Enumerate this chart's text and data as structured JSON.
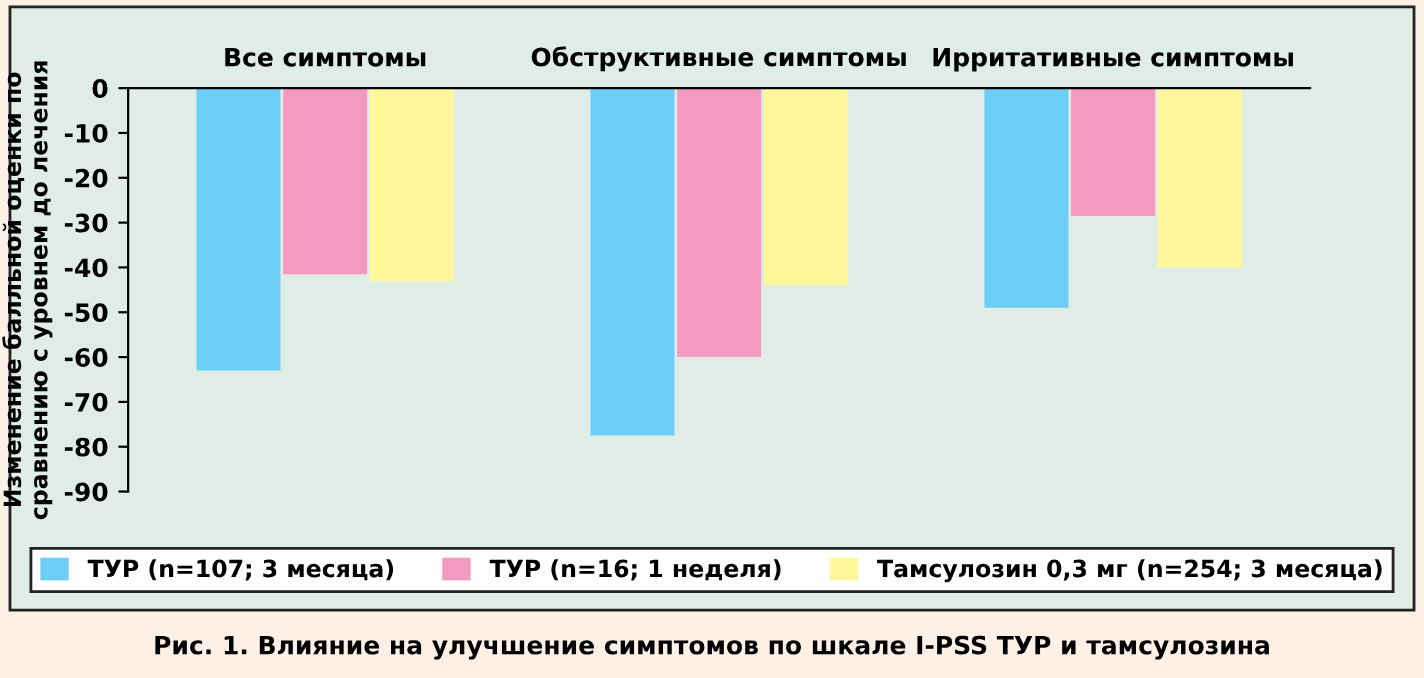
{
  "chart_data": {
    "type": "bar",
    "title": "Рис. 1. Влияние на улучшение симптомов по шкале I-PSS ТУР и тамсулозина",
    "ylabel": "Изменение балльной оценки по\nсравнению с уровнем до лечения",
    "categories": [
      "Все симптомы",
      "Обструктивные симптомы",
      "Ирритативные симптомы"
    ],
    "series": [
      {
        "name": "ТУР (n=107; 3 месяца)",
        "color": "#6dcff6",
        "values": [
          -63,
          -77.5,
          -49
        ]
      },
      {
        "name": "ТУР (n=16; 1 неделя)",
        "color": "#f49ac1",
        "values": [
          -41.5,
          -60,
          -28.5
        ]
      },
      {
        "name": "Тамсулозин 0,3 мг (n=254; 3 месяца)",
        "color": "#fff799",
        "values": [
          -43,
          -44,
          -40
        ]
      }
    ],
    "ylim": [
      -90,
      0
    ],
    "yticks": [
      -90,
      -80,
      -70,
      -60,
      -50,
      -40,
      -30,
      -20,
      -10,
      0
    ],
    "grid": false,
    "legend": "bottom"
  }
}
